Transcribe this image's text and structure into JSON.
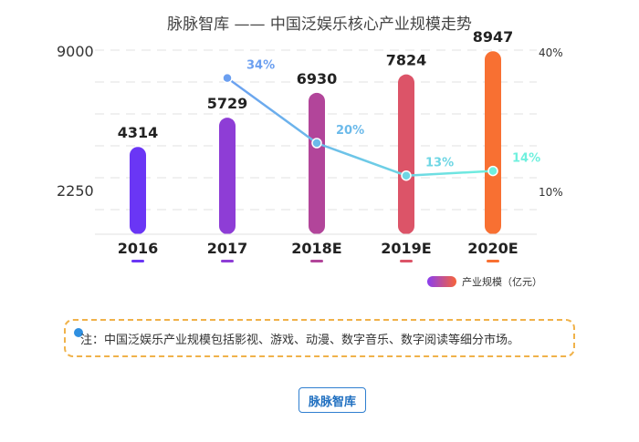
{
  "chart_data": {
    "type": "bar",
    "title": "脉脉智库 —— 中国泛娱乐核心产业规模走势",
    "categories": [
      "2016",
      "2017",
      "2018E",
      "2019E",
      "2020E"
    ],
    "series": [
      {
        "name": "产业规模（亿元）",
        "type": "bar",
        "axis": "left",
        "values": [
          4314,
          5729,
          6930,
          7824,
          8947
        ]
      },
      {
        "type": "line",
        "axis": "right",
        "values": [
          null,
          34,
          20,
          13,
          14
        ],
        "labels": [
          "",
          "34%",
          "20%",
          "13%",
          "14%"
        ]
      }
    ],
    "left_axis": {
      "ticks": [
        "9000",
        "2250"
      ],
      "tick_values": [
        9000,
        2250
      ]
    },
    "right_axis": {
      "ticks": [
        "40%",
        "10%"
      ],
      "tick_values": [
        40,
        10
      ]
    },
    "bar_colors": [
      "#6a36f5",
      "#8e3dd6",
      "#b2459a",
      "#dc5468",
      "#f87032"
    ],
    "line_colors": [
      "#6b9ff0",
      "#6ff0de"
    ],
    "legend": {
      "position": "bottom-right",
      "label": "产业规模（亿元）"
    },
    "grid": true
  },
  "note": "注：中国泛娱乐产业规模包括影视、游戏、动漫、数字音乐、数字阅读等细分市场。",
  "brand": "脉脉智库"
}
